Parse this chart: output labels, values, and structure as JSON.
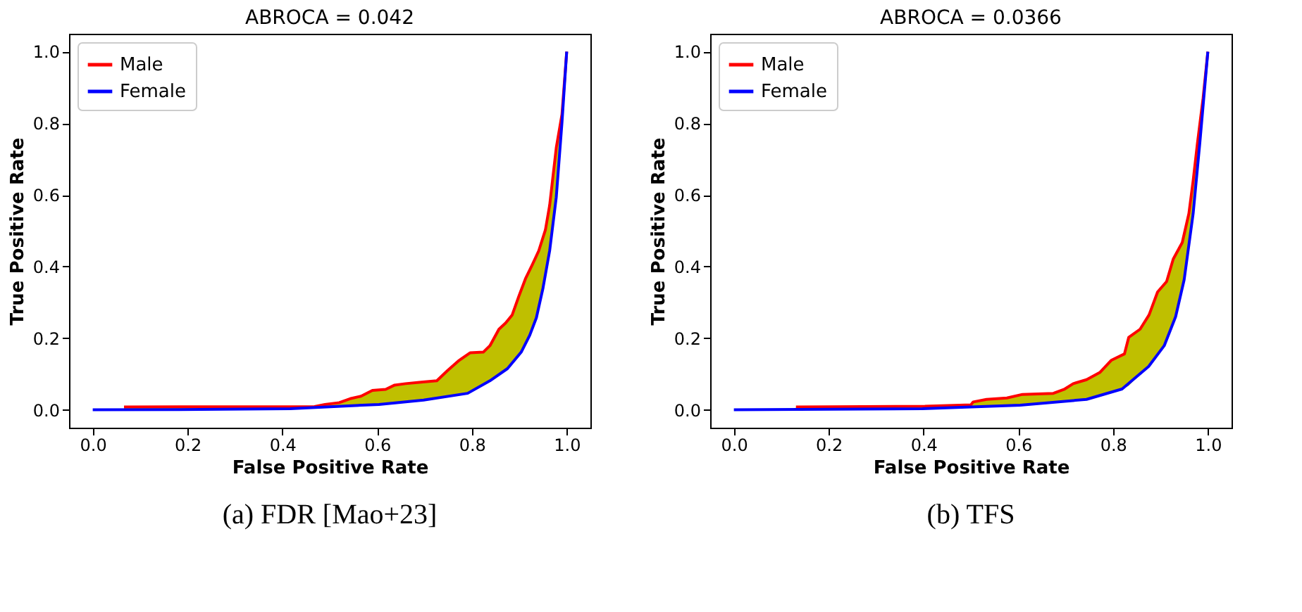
{
  "chart_data": [
    {
      "type": "line",
      "title": "ABROCA = 0.042",
      "xlabel": "False Positive Rate",
      "ylabel": "True Positive Rate",
      "xlim": [
        -0.05,
        1.05
      ],
      "ylim": [
        -0.05,
        1.05
      ],
      "xticks": [
        {
          "value": 0,
          "label": "0.0"
        },
        {
          "value": 0.2,
          "label": "0.2"
        },
        {
          "value": 0.4,
          "label": "0.4"
        },
        {
          "value": 0.6,
          "label": "0.6"
        },
        {
          "value": 0.8,
          "label": "0.8"
        },
        {
          "value": 1,
          "label": "1.0"
        }
      ],
      "yticks": [
        {
          "value": 0,
          "label": "0.0"
        },
        {
          "value": 0.2,
          "label": "0.2"
        },
        {
          "value": 0.4,
          "label": "0.4"
        },
        {
          "value": 0.6,
          "label": "0.6"
        },
        {
          "value": 0.8,
          "label": "0.8"
        },
        {
          "value": 1,
          "label": "1.0"
        }
      ],
      "grid": false,
      "legend": "top left",
      "annotations": [
        "(a) FDR [Mao+23]"
      ],
      "series": [
        {
          "name": "Male",
          "color": "#ff0000",
          "x": [
            0.066,
            0.468,
            0.49,
            0.52,
            0.543,
            0.566,
            0.59,
            0.618,
            0.637,
            0.66,
            0.693,
            0.726,
            0.749,
            0.773,
            0.796,
            0.824,
            0.838,
            0.857,
            0.871,
            0.885,
            0.899,
            0.913,
            0.927,
            0.941,
            0.955,
            0.964,
            0.978,
            0.99,
            1
          ],
          "values": [
            0.008,
            0.009,
            0.015,
            0.02,
            0.031,
            0.038,
            0.054,
            0.057,
            0.069,
            0.073,
            0.077,
            0.081,
            0.11,
            0.138,
            0.159,
            0.161,
            0.179,
            0.225,
            0.242,
            0.265,
            0.317,
            0.366,
            0.404,
            0.444,
            0.502,
            0.571,
            0.732,
            0.825,
            1
          ],
          "lower": [
            0,
            0.004,
            0.005,
            0.007,
            0.009,
            0.011,
            0.013,
            0.017,
            0.019,
            0.021,
            0.026,
            0.032,
            0.036,
            0.042,
            0.048,
            0.07,
            0.081,
            0.098,
            0.108,
            0.128,
            0.153,
            0.184,
            0.225,
            0.287,
            0.37,
            0.444,
            0.594,
            0.802,
            1
          ],
          "upper": [
            0.008,
            0.009,
            0.015,
            0.02,
            0.031,
            0.038,
            0.054,
            0.057,
            0.069,
            0.073,
            0.077,
            0.081,
            0.11,
            0.138,
            0.159,
            0.161,
            0.179,
            0.225,
            0.242,
            0.265,
            0.317,
            0.366,
            0.404,
            0.444,
            0.502,
            0.571,
            0.732,
            0.825,
            1
          ]
        },
        {
          "name": "Female",
          "color": "#0000ff",
          "x": [
            0,
            0.229,
            0.417,
            0.604,
            0.698,
            0.791,
            0.838,
            0.875,
            0.904,
            0.922,
            0.936,
            0.95,
            0.964,
            0.978,
            0.99,
            1
          ],
          "values": [
            0,
            0.001,
            0.003,
            0.015,
            0.027,
            0.046,
            0.081,
            0.115,
            0.161,
            0.208,
            0.257,
            0.34,
            0.444,
            0.594,
            0.802,
            1
          ]
        }
      ]
    },
    {
      "type": "line",
      "title": "ABROCA = 0.0366",
      "xlabel": "False Positive Rate",
      "ylabel": "True Positive Rate",
      "xlim": [
        -0.05,
        1.05
      ],
      "ylim": [
        -0.05,
        1.05
      ],
      "xticks": [
        {
          "value": 0,
          "label": "0.0"
        },
        {
          "value": 0.2,
          "label": "0.2"
        },
        {
          "value": 0.4,
          "label": "0.4"
        },
        {
          "value": 0.6,
          "label": "0.6"
        },
        {
          "value": 0.8,
          "label": "0.8"
        },
        {
          "value": 1,
          "label": "1.0"
        }
      ],
      "yticks": [
        {
          "value": 0,
          "label": "0.0"
        },
        {
          "value": 0.2,
          "label": "0.2"
        },
        {
          "value": 0.4,
          "label": "0.4"
        },
        {
          "value": 0.6,
          "label": "0.6"
        },
        {
          "value": 0.8,
          "label": "0.8"
        },
        {
          "value": 1,
          "label": "1.0"
        }
      ],
      "grid": false,
      "legend": "top left",
      "annotations": [
        "(b) TFS"
      ],
      "series": [
        {
          "name": "Male",
          "color": "#ff0000",
          "x": [
            0.131,
            0.403,
            0.5,
            0.505,
            0.533,
            0.576,
            0.609,
            0.674,
            0.698,
            0.716,
            0.744,
            0.772,
            0.796,
            0.824,
            0.833,
            0.857,
            0.876,
            0.894,
            0.913,
            0.927,
            0.946,
            0.96,
            0.969,
            0.978,
            0.99,
            1
          ],
          "values": [
            0.008,
            0.01,
            0.014,
            0.022,
            0.029,
            0.033,
            0.043,
            0.046,
            0.058,
            0.073,
            0.084,
            0.104,
            0.138,
            0.156,
            0.202,
            0.225,
            0.265,
            0.329,
            0.358,
            0.421,
            0.467,
            0.548,
            0.64,
            0.744,
            0.871,
            1
          ],
          "lower": [
            0.001,
            0.003,
            0.007,
            0.007,
            0.008,
            0.011,
            0.013,
            0.02,
            0.023,
            0.025,
            0.029,
            0.039,
            0.048,
            0.061,
            0.067,
            0.1,
            0.121,
            0.154,
            0.191,
            0.239,
            0.34,
            0.46,
            0.548,
            0.68,
            0.86,
            1
          ],
          "upper": [
            0.008,
            0.01,
            0.014,
            0.022,
            0.029,
            0.033,
            0.043,
            0.046,
            0.058,
            0.073,
            0.084,
            0.104,
            0.138,
            0.156,
            0.202,
            0.225,
            0.265,
            0.329,
            0.358,
            0.421,
            0.467,
            0.548,
            0.64,
            0.744,
            0.871,
            1
          ]
        },
        {
          "name": "Female",
          "color": "#0000ff",
          "x": [
            0,
            0.398,
            0.604,
            0.744,
            0.819,
            0.875,
            0.908,
            0.932,
            0.95,
            0.969,
            0.983,
            1
          ],
          "values": [
            0,
            0.003,
            0.013,
            0.029,
            0.058,
            0.121,
            0.179,
            0.26,
            0.363,
            0.548,
            0.744,
            1
          ]
        }
      ]
    }
  ]
}
